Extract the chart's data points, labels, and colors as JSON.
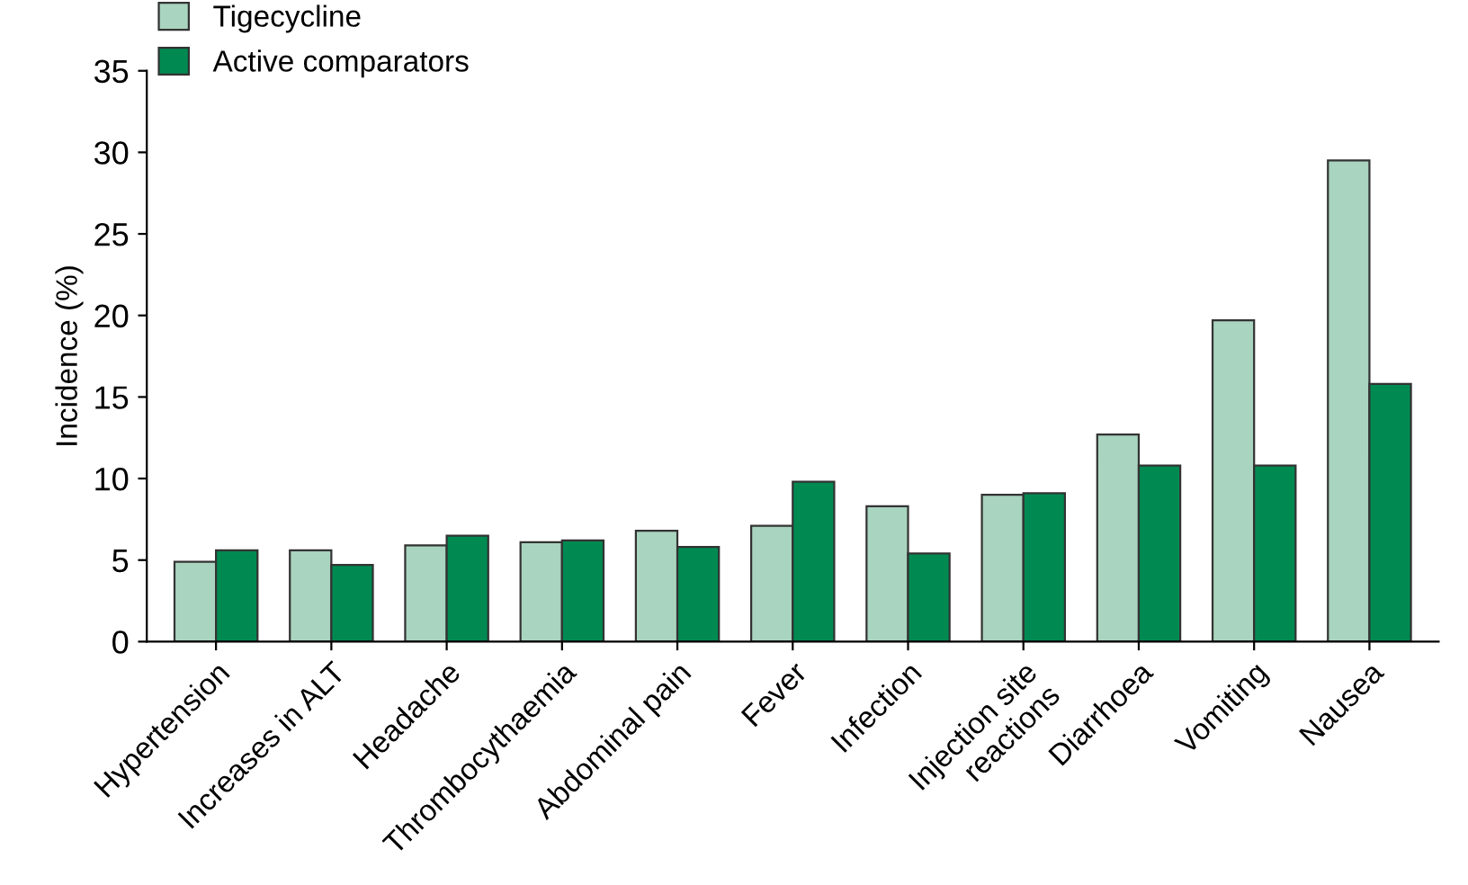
{
  "chart_data": {
    "type": "bar",
    "ylabel": "Incidence (%)",
    "categories": [
      "Hypertension",
      "Increases in ALT",
      "Headache",
      "Thrombocythaemia",
      "Abdominal pain",
      "Fever",
      "Infection",
      "Injection site\nreactions",
      "Diarrhoea",
      "Vomiting",
      "Nausea"
    ],
    "series": [
      {
        "name": "Tigecycline",
        "color": "#a9d4bf",
        "values": [
          4.9,
          5.6,
          5.9,
          6.1,
          6.8,
          7.1,
          8.3,
          9.0,
          12.7,
          19.7,
          29.5
        ]
      },
      {
        "name": "Active comparators",
        "color": "#008a52",
        "values": [
          5.6,
          4.7,
          6.5,
          6.2,
          5.8,
          9.8,
          5.4,
          9.1,
          10.8,
          10.8,
          15.8
        ]
      }
    ],
    "ylim": [
      0,
      35
    ],
    "yticks": [
      0,
      5,
      10,
      15,
      20,
      25,
      30,
      35
    ],
    "grid": false,
    "legend": "top left"
  }
}
